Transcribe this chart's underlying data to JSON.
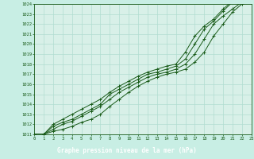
{
  "xlabel": "Graphe pression niveau de la mer (hPa)",
  "bg_color": "#c8eee4",
  "plot_bg_color": "#d8f0e8",
  "grid_color": "#b0ddd0",
  "line_color": "#1a5c1a",
  "label_bg_color": "#2a6e2a",
  "label_text_color": "#ffffff",
  "xlim": [
    0,
    23
  ],
  "ylim": [
    1011,
    1024
  ],
  "xticks": [
    0,
    1,
    2,
    3,
    4,
    5,
    6,
    7,
    8,
    9,
    10,
    11,
    12,
    13,
    14,
    15,
    16,
    17,
    18,
    19,
    20,
    21,
    22,
    23
  ],
  "yticks": [
    1011,
    1012,
    1013,
    1014,
    1015,
    1016,
    1017,
    1018,
    1019,
    1020,
    1021,
    1022,
    1023,
    1024
  ],
  "curves": [
    [
      1011.0,
      1011.0,
      1011.3,
      1011.5,
      1011.8,
      1012.2,
      1012.5,
      1013.0,
      1013.8,
      1014.5,
      1015.2,
      1015.8,
      1016.3,
      1016.7,
      1017.0,
      1017.2,
      1017.5,
      1018.2,
      1019.2,
      1020.8,
      1022.0,
      1023.2,
      1024.0,
      1024.2
    ],
    [
      1011.0,
      1011.0,
      1011.5,
      1012.0,
      1012.3,
      1012.8,
      1013.3,
      1013.8,
      1014.5,
      1015.2,
      1015.7,
      1016.2,
      1016.7,
      1017.0,
      1017.2,
      1017.5,
      1018.0,
      1019.0,
      1020.5,
      1022.0,
      1022.8,
      1023.5,
      1024.2,
      1024.3
    ],
    [
      1011.0,
      1011.0,
      1011.8,
      1012.2,
      1012.5,
      1013.0,
      1013.5,
      1014.0,
      1015.0,
      1015.5,
      1016.0,
      1016.5,
      1017.0,
      1017.2,
      1017.5,
      1017.8,
      1018.5,
      1020.0,
      1021.5,
      1022.3,
      1023.3,
      1024.2,
      1024.4,
      1024.5
    ],
    [
      1011.0,
      1011.0,
      1012.0,
      1012.5,
      1013.0,
      1013.5,
      1014.0,
      1014.5,
      1015.2,
      1015.8,
      1016.3,
      1016.8,
      1017.2,
      1017.5,
      1017.8,
      1018.0,
      1019.2,
      1020.8,
      1021.8,
      1022.5,
      1023.5,
      1024.3,
      1024.5,
      1024.5
    ]
  ]
}
